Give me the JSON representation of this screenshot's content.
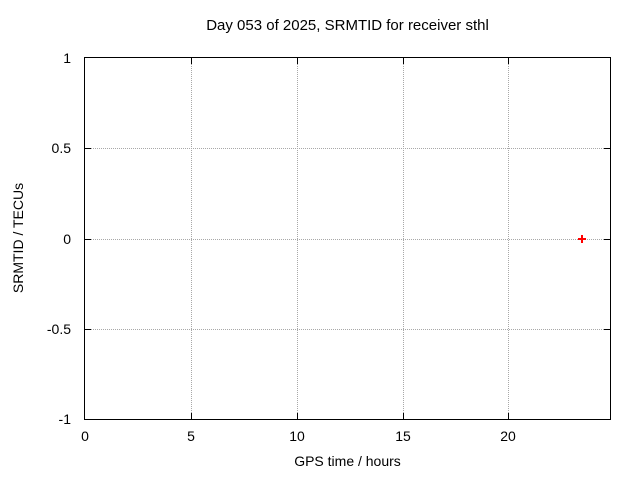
{
  "chart_data": {
    "type": "scatter",
    "title": "Day 053 of 2025, SRMTID for receiver sthl",
    "xlabel": "GPS time / hours",
    "ylabel": "SRMTID / TECUs",
    "xlim": [
      0,
      24.8
    ],
    "ylim": [
      -1,
      1
    ],
    "xticks": [
      0,
      5,
      10,
      15,
      20
    ],
    "yticks": [
      1,
      0.5,
      0,
      -0.5,
      -1
    ],
    "grid": true,
    "legend": "none",
    "series": [
      {
        "name": "SRMTID",
        "marker": "plus",
        "color": "#ff0000",
        "points": [
          {
            "x": 23.5,
            "y": 0.0
          }
        ]
      }
    ],
    "colors": {
      "background": "#ffffff",
      "border": "#000000",
      "grid": "#a8a8a8",
      "text": "#000000",
      "point": "#ff0000"
    }
  }
}
